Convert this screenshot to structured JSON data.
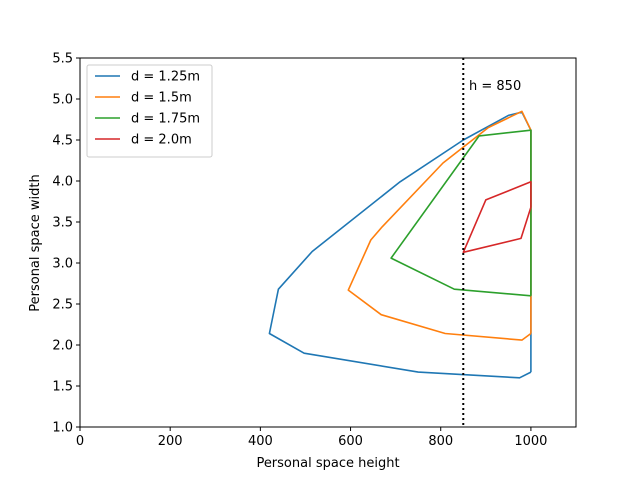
{
  "chart_data": {
    "type": "line",
    "title": "",
    "xlabel": "Personal space height",
    "ylabel": "Personal space width",
    "xlim": [
      0,
      1100
    ],
    "ylim": [
      1.0,
      5.5
    ],
    "xticks": [
      0,
      200,
      400,
      600,
      800,
      1000
    ],
    "xtick_labels": [
      "0",
      "200",
      "400",
      "600",
      "800",
      "1000"
    ],
    "yticks": [
      1.0,
      1.5,
      2.0,
      2.5,
      3.0,
      3.5,
      4.0,
      4.5,
      5.0,
      5.5
    ],
    "ytick_labels": [
      "1.0",
      "1.5",
      "2.0",
      "2.5",
      "3.0",
      "3.5",
      "4.0",
      "4.5",
      "5.0",
      "5.5"
    ],
    "grid": false,
    "legend_position": "top-left",
    "series": [
      {
        "name": "d = 1.25m",
        "color": "#1f77b4",
        "points": [
          [
            1000,
            1.67
          ],
          [
            1000,
            4.62
          ],
          [
            980,
            4.84
          ],
          [
            950,
            4.8
          ],
          [
            850,
            4.5
          ],
          [
            710,
            3.99
          ],
          [
            515,
            3.14
          ],
          [
            440,
            2.68
          ],
          [
            420,
            2.14
          ],
          [
            497,
            1.9
          ],
          [
            750,
            1.67
          ],
          [
            975,
            1.6
          ],
          [
            1000,
            1.67
          ]
        ]
      },
      {
        "name": "d = 1.5m",
        "color": "#ff7f0e",
        "points": [
          [
            1000,
            2.14
          ],
          [
            1000,
            4.62
          ],
          [
            980,
            4.85
          ],
          [
            905,
            4.65
          ],
          [
            805,
            4.22
          ],
          [
            670,
            3.44
          ],
          [
            645,
            3.28
          ],
          [
            595,
            2.67
          ],
          [
            668,
            2.37
          ],
          [
            810,
            2.14
          ],
          [
            980,
            2.06
          ],
          [
            1000,
            2.14
          ]
        ]
      },
      {
        "name": "d = 1.75m",
        "color": "#2ca02c",
        "points": [
          [
            1000,
            2.6
          ],
          [
            1000,
            4.62
          ],
          [
            885,
            4.55
          ],
          [
            690,
            3.06
          ],
          [
            830,
            2.68
          ],
          [
            1000,
            2.6
          ]
        ]
      },
      {
        "name": "d = 2.0m",
        "color": "#d62728",
        "points": [
          [
            1000,
            3.68
          ],
          [
            1000,
            3.99
          ],
          [
            900,
            3.77
          ],
          [
            850,
            3.13
          ],
          [
            978,
            3.3
          ],
          [
            1000,
            3.68
          ]
        ]
      }
    ],
    "reference_line": {
      "x": 850,
      "label": "h = 850",
      "color": "#000000",
      "style": "dotted"
    }
  }
}
